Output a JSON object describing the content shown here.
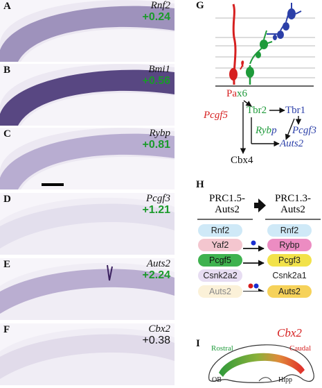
{
  "panels": [
    {
      "label": "A",
      "gene": "Rnf2",
      "score": "+0.24",
      "score_color": "#1a9a2a"
    },
    {
      "label": "B",
      "gene": "Bmi1",
      "score": "+0.56",
      "score_color": "#1a9a2a"
    },
    {
      "label": "C",
      "gene": "Rybp",
      "score": "+0.81",
      "score_color": "#1a9a2a"
    },
    {
      "label": "D",
      "gene": "Pcgf3",
      "score": "+1.21",
      "score_color": "#1a9a2a"
    },
    {
      "label": "E",
      "gene": "Auts2",
      "score": "+2.24",
      "score_color": "#1a9a2a"
    },
    {
      "label": "F",
      "gene": "Cbx2",
      "score": "+0.38",
      "score_color": "#111111"
    }
  ],
  "panel_g": {
    "label": "G",
    "pax6_a": "Pa",
    "pax6_b": "x6",
    "tbr2": "Tbr2",
    "tbr1": "Tbr1",
    "pcgf5": "Pcgf5",
    "rybp_a": "Ryb",
    "rybp_b": "p",
    "pcgf3": "Pcgf3",
    "auts2": "Auts2",
    "cbx4": "Cbx4",
    "colors": {
      "red": "#d62020",
      "green": "#1e9a3a",
      "blue": "#2b3fa8"
    }
  },
  "panel_h": {
    "label": "H",
    "left_title_1": "PRC1.5-",
    "left_title_2": "Auts2",
    "right_title_1": "PRC1.3-",
    "right_title_2": "Auts2",
    "left_items": [
      "Rnf2",
      "Yaf2",
      "Pcgf5",
      "Csnk2a2",
      "Auts2"
    ],
    "right_items": [
      "Rnf2",
      "Rybp",
      "Pcgf3",
      "Csnk2a1",
      "Auts2"
    ]
  },
  "panel_i": {
    "label": "I",
    "gene": "Cbx2",
    "rostral": "Rostral",
    "caudal": "Caudal",
    "ob": "OB",
    "hipp": "Hipp"
  }
}
